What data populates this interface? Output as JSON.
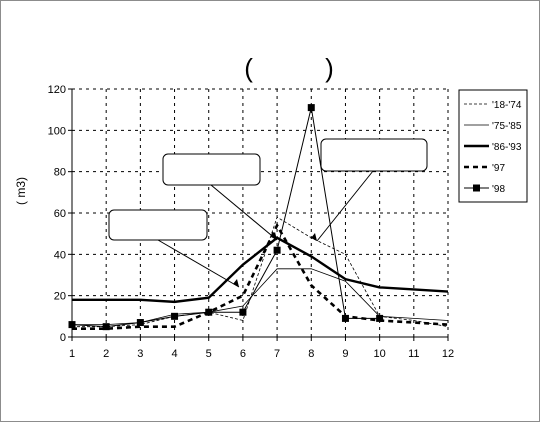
{
  "title": "(          )",
  "chart_data": {
    "type": "line",
    "title": "",
    "ylabel": "( m3)",
    "xlabel": "",
    "x": [
      1,
      2,
      3,
      4,
      5,
      6,
      7,
      8,
      9,
      10,
      11,
      12
    ],
    "xlim": [
      1,
      12
    ],
    "ylim": [
      0,
      120
    ],
    "yticks": [
      0,
      20,
      40,
      60,
      80,
      100,
      120
    ],
    "grid": true,
    "legend": "right",
    "series": [
      {
        "name": "'18-'74",
        "style": "thin-dashed",
        "values": [
          5,
          5,
          6,
          10,
          12,
          8,
          58,
          48,
          40,
          10,
          8,
          5
        ]
      },
      {
        "name": "'75-'85",
        "style": "thin-solid",
        "values": [
          6,
          6,
          7,
          11,
          12,
          15,
          33,
          33,
          27,
          10,
          9,
          8
        ]
      },
      {
        "name": "'86-'93",
        "style": "thick-solid",
        "values": [
          18,
          18,
          18,
          17,
          19,
          35,
          48,
          39,
          28,
          24,
          23,
          22
        ]
      },
      {
        "name": "'97",
        "style": "thick-dashed",
        "values": [
          4,
          4,
          5,
          5,
          12,
          20,
          54,
          25,
          10,
          8,
          7,
          6
        ]
      },
      {
        "name": "'98",
        "style": "square-markers",
        "values": [
          6,
          5,
          7,
          10,
          12,
          12,
          42,
          111,
          9,
          9,
          null,
          null
        ]
      }
    ],
    "annotations": [
      "",
      "",
      ""
    ]
  }
}
